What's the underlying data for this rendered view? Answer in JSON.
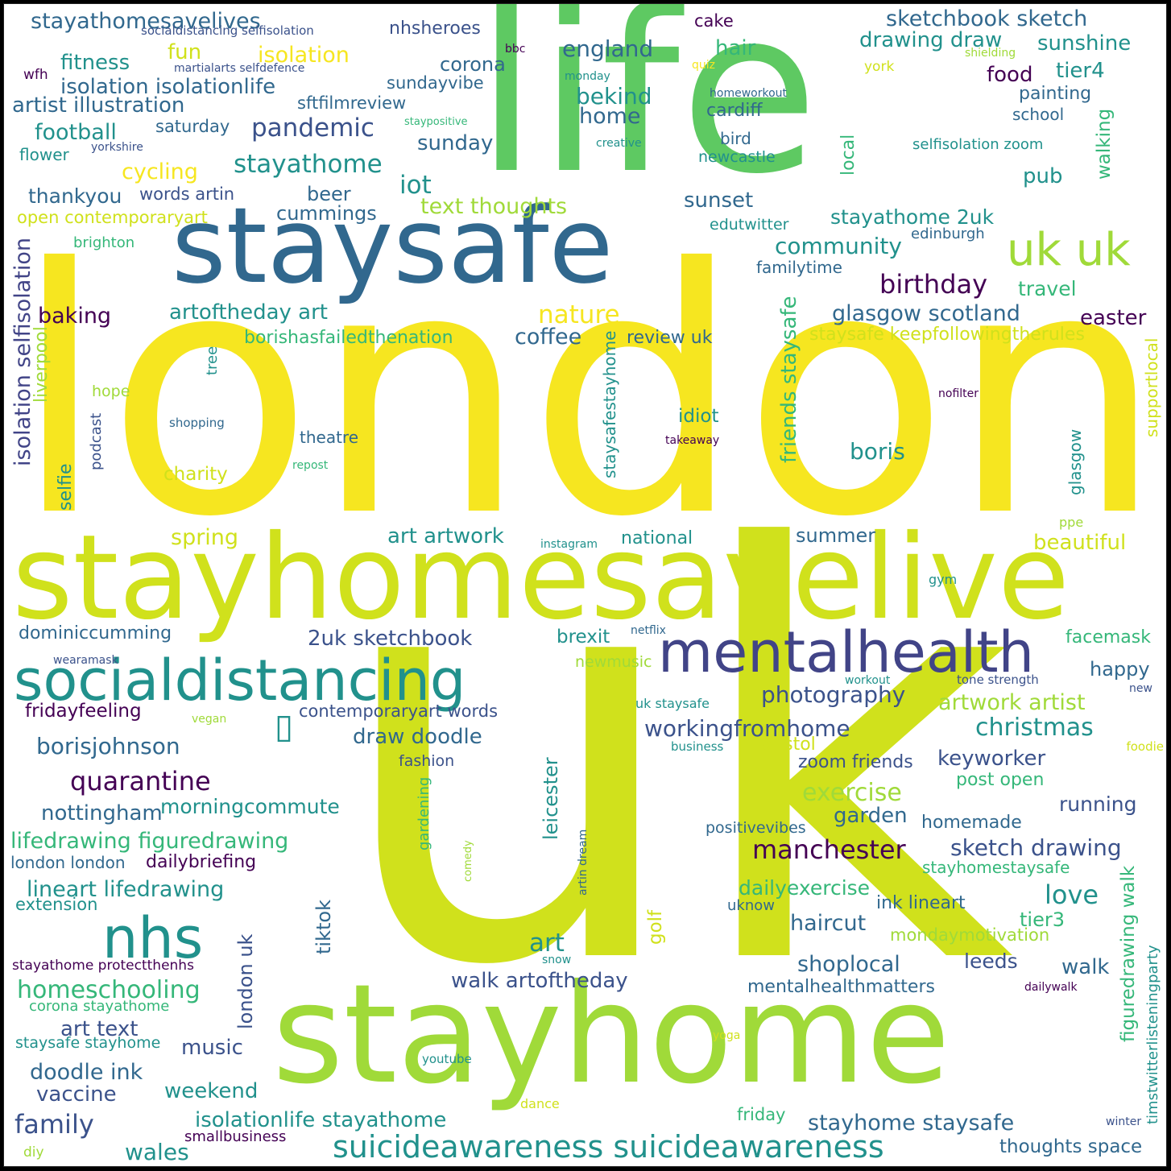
{
  "palette": {
    "purple": "#440154",
    "indigo": "#3b528b",
    "navy": "#414487",
    "blue": "#31688e",
    "teal": "#21918c",
    "green": "#35b779",
    "lightgreen": "#5ec962",
    "lime": "#a0da39",
    "yellowgreen": "#d0e11c",
    "yellow": "#f6e620"
  },
  "words": [
    {
      "name": "london",
      "text": "london",
      "color": "yellow"
    },
    {
      "name": "uk",
      "text": "uk",
      "color": "yellowgreen"
    },
    {
      "name": "life",
      "text": "life",
      "color": "lightgreen"
    },
    {
      "name": "stayhomesavelive",
      "text": "stayhomesavelive",
      "color": "yellowgreen"
    },
    {
      "name": "stayhome",
      "text": "stayhome",
      "color": "lime"
    },
    {
      "name": "staysafe",
      "text": "staysafe",
      "color": "blue"
    },
    {
      "name": "mentalhealth",
      "text": "mentalhealth",
      "color": "navy"
    },
    {
      "name": "socialdistancing",
      "text": "socialdistancing",
      "color": "teal"
    },
    {
      "name": "nhs",
      "text": "nhs",
      "color": "teal"
    },
    {
      "name": "uk-uk",
      "text": "uk uk",
      "color": "lime"
    },
    {
      "name": "suicideawareness",
      "text": "suicideawareness suicideawareness",
      "color": "teal"
    },
    {
      "name": "stayathomesavelives",
      "text": "stayathomesavelives",
      "color": "blue"
    },
    {
      "name": "socialdistancing-selfisolation",
      "text": "socialdistancing selfisolation",
      "color": "indigo"
    },
    {
      "name": "martialarts",
      "text": "martialarts selfdefence",
      "color": "indigo"
    },
    {
      "name": "wfh",
      "text": "wfh",
      "color": "purple"
    },
    {
      "name": "fitness",
      "text": "fitness",
      "color": "teal"
    },
    {
      "name": "isolation-isolationlife",
      "text": "isolation isolationlife",
      "color": "blue"
    },
    {
      "name": "artist-illustration",
      "text": "artist illustration",
      "color": "blue"
    },
    {
      "name": "football",
      "text": "football",
      "color": "teal"
    },
    {
      "name": "flower",
      "text": "flower",
      "color": "teal"
    },
    {
      "name": "yorkshire",
      "text": "yorkshire",
      "color": "indigo"
    },
    {
      "name": "cycling",
      "text": "cycling",
      "color": "yellow"
    },
    {
      "name": "thankyou",
      "text": "thankyou",
      "color": "blue"
    },
    {
      "name": "words-artin",
      "text": "words artin",
      "color": "indigo"
    },
    {
      "name": "open-contemporaryart",
      "text": "open contemporaryart",
      "color": "yellowgreen"
    },
    {
      "name": "brighton",
      "text": "brighton",
      "color": "green"
    },
    {
      "name": "fun",
      "text": "fun",
      "color": "yellowgreen"
    },
    {
      "name": "isolation",
      "text": "isolation",
      "color": "yellow"
    },
    {
      "name": "nhsheroes",
      "text": "nhsheroes",
      "color": "indigo"
    },
    {
      "name": "bbc",
      "text": "bbc",
      "color": "purple"
    },
    {
      "name": "cake",
      "text": "cake",
      "color": "purple"
    },
    {
      "name": "sketchbook-sketch",
      "text": "sketchbook sketch",
      "color": "blue"
    },
    {
      "name": "drawing-draw",
      "text": "drawing draw",
      "color": "teal"
    },
    {
      "name": "sunshine",
      "text": "sunshine",
      "color": "teal"
    },
    {
      "name": "england",
      "text": "england",
      "color": "blue"
    },
    {
      "name": "hair",
      "text": "hair",
      "color": "green"
    },
    {
      "name": "corona",
      "text": "corona",
      "color": "blue"
    },
    {
      "name": "monday",
      "text": "monday",
      "color": "teal"
    },
    {
      "name": "quiz",
      "text": "quiz",
      "color": "yellow"
    },
    {
      "name": "york",
      "text": "york",
      "color": "yellowgreen"
    },
    {
      "name": "shielding",
      "text": "shielding",
      "color": "lime"
    },
    {
      "name": "food",
      "text": "food",
      "color": "purple"
    },
    {
      "name": "tier4",
      "text": "tier4",
      "color": "teal"
    },
    {
      "name": "sundayvibe",
      "text": "sundayvibe",
      "color": "blue"
    },
    {
      "name": "sftfilmreview",
      "text": "sftfilmreview",
      "color": "blue"
    },
    {
      "name": "bekind",
      "text": "bekind",
      "color": "teal"
    },
    {
      "name": "home",
      "text": "home",
      "color": "blue"
    },
    {
      "name": "homeworkout",
      "text": "homeworkout",
      "color": "blue"
    },
    {
      "name": "cardiff",
      "text": "cardiff",
      "color": "blue"
    },
    {
      "name": "painting",
      "text": "painting",
      "color": "blue"
    },
    {
      "name": "school",
      "text": "school",
      "color": "blue"
    },
    {
      "name": "staypositive",
      "text": "staypositive",
      "color": "green"
    },
    {
      "name": "saturday",
      "text": "saturday",
      "color": "blue"
    },
    {
      "name": "pandemic",
      "text": "pandemic",
      "color": "indigo"
    },
    {
      "name": "sunday",
      "text": "sunday",
      "color": "blue"
    },
    {
      "name": "creative",
      "text": "creative",
      "color": "teal"
    },
    {
      "name": "bird",
      "text": "bird",
      "color": "blue"
    },
    {
      "name": "newcastle",
      "text": "newcastle",
      "color": "teal"
    },
    {
      "name": "selfisolation-zoom",
      "text": "selfisolation zoom",
      "color": "teal"
    },
    {
      "name": "walking",
      "text": "walking",
      "color": "green"
    },
    {
      "name": "local",
      "text": "local",
      "color": "green"
    },
    {
      "name": "stayathome",
      "text": "stayathome",
      "color": "teal"
    },
    {
      "name": "iot",
      "text": "iot",
      "color": "teal"
    },
    {
      "name": "beer",
      "text": "beer",
      "color": "blue"
    },
    {
      "name": "text-thoughts",
      "text": "text thoughts",
      "color": "lime"
    },
    {
      "name": "cummings",
      "text": "cummings",
      "color": "blue"
    },
    {
      "name": "sunset",
      "text": "sunset",
      "color": "blue"
    },
    {
      "name": "pub",
      "text": "pub",
      "color": "teal"
    },
    {
      "name": "edutwitter",
      "text": "edutwitter",
      "color": "teal"
    },
    {
      "name": "stayathome-2uk",
      "text": "stayathome 2uk",
      "color": "teal"
    },
    {
      "name": "edinburgh",
      "text": "edinburgh",
      "color": "blue"
    },
    {
      "name": "community",
      "text": "community",
      "color": "teal"
    },
    {
      "name": "familytime",
      "text": "familytime",
      "color": "blue"
    },
    {
      "name": "birthday",
      "text": "birthday",
      "color": "purple"
    },
    {
      "name": "travel",
      "text": "travel",
      "color": "green"
    },
    {
      "name": "nature",
      "text": "nature",
      "color": "yellow"
    },
    {
      "name": "baking",
      "text": "baking",
      "color": "purple"
    },
    {
      "name": "artoftheday-art",
      "text": "artoftheday art",
      "color": "teal"
    },
    {
      "name": "glasgow-scotland",
      "text": "glasgow scotland",
      "color": "blue"
    },
    {
      "name": "easter",
      "text": "easter",
      "color": "purple"
    },
    {
      "name": "staysafe-keepfollowing",
      "text": "staysafe keepfollowingtherules",
      "color": "yellowgreen"
    },
    {
      "name": "borishasfailedthenation",
      "text": "borishasfailedthenation",
      "color": "green"
    },
    {
      "name": "coffee",
      "text": "coffee",
      "color": "blue"
    },
    {
      "name": "review-uk",
      "text": "review uk",
      "color": "blue"
    },
    {
      "name": "isolation-selfisolation",
      "text": "isolation selfisolation",
      "color": "navy"
    },
    {
      "name": "liverpool",
      "text": "liverpool",
      "color": "lime"
    },
    {
      "name": "tree",
      "text": "tree",
      "color": "teal"
    },
    {
      "name": "hope",
      "text": "hope",
      "color": "lime"
    },
    {
      "name": "shopping",
      "text": "shopping",
      "color": "blue"
    },
    {
      "name": "podcast",
      "text": "podcast",
      "color": "indigo"
    },
    {
      "name": "staysafestayhome",
      "text": "staysafestayhome",
      "color": "teal"
    },
    {
      "name": "friends-staysafe",
      "text": "friends staysafe",
      "color": "green"
    },
    {
      "name": "idiot",
      "text": "idiot",
      "color": "teal"
    },
    {
      "name": "takeaway",
      "text": "takeaway",
      "color": "purple"
    },
    {
      "name": "theatre",
      "text": "theatre",
      "color": "blue"
    },
    {
      "name": "repost",
      "text": "repost",
      "color": "green"
    },
    {
      "name": "nofilter",
      "text": "nofilter",
      "color": "purple"
    },
    {
      "name": "supportlocal",
      "text": "supportlocal",
      "color": "yellowgreen"
    },
    {
      "name": "glasgow",
      "text": "glasgow",
      "color": "teal"
    },
    {
      "name": "boris",
      "text": "boris",
      "color": "teal"
    },
    {
      "name": "charity",
      "text": "charity",
      "color": "yellowgreen"
    },
    {
      "name": "selfie",
      "text": "selfie",
      "color": "teal"
    },
    {
      "name": "spring",
      "text": "spring",
      "color": "yellowgreen"
    },
    {
      "name": "art-artwork",
      "text": "art artwork",
      "color": "teal"
    },
    {
      "name": "instagram",
      "text": "instagram",
      "color": "teal"
    },
    {
      "name": "national",
      "text": "national",
      "color": "teal"
    },
    {
      "name": "summer",
      "text": "summer",
      "color": "blue"
    },
    {
      "name": "ppe",
      "text": "ppe",
      "color": "lime"
    },
    {
      "name": "beautiful",
      "text": "beautiful",
      "color": "yellowgreen"
    },
    {
      "name": "gym",
      "text": "gym",
      "color": "teal"
    },
    {
      "name": "dominiccumming",
      "text": "dominiccumming",
      "color": "blue"
    },
    {
      "name": "2uk-sketchbook",
      "text": "2uk sketchbook",
      "color": "indigo"
    },
    {
      "name": "brexit",
      "text": "brexit",
      "color": "teal"
    },
    {
      "name": "netflix",
      "text": "netflix",
      "color": "blue"
    },
    {
      "name": "facemask",
      "text": "facemask",
      "color": "green"
    },
    {
      "name": "newmusic",
      "text": "newmusic",
      "color": "lime"
    },
    {
      "name": "wearamask",
      "text": "wearamask",
      "color": "indigo"
    },
    {
      "name": "workout",
      "text": "workout",
      "color": "teal"
    },
    {
      "name": "tone-strength",
      "text": "tone strength",
      "color": "indigo"
    },
    {
      "name": "happy",
      "text": "happy",
      "color": "blue"
    },
    {
      "name": "new",
      "text": "new",
      "color": "indigo"
    },
    {
      "name": "photography",
      "text": "photography",
      "color": "indigo"
    },
    {
      "name": "uk-staysafe",
      "text": "uk staysafe",
      "color": "teal"
    },
    {
      "name": "artwork-artist",
      "text": "artwork artist",
      "color": "lime"
    },
    {
      "name": "fridayfeeling",
      "text": "fridayfeeling",
      "color": "purple"
    },
    {
      "name": "vegan",
      "text": "vegan",
      "color": "lime"
    },
    {
      "name": "contemporaryart-words",
      "text": "contemporaryart words",
      "color": "indigo"
    },
    {
      "name": "christmas",
      "text": "christmas",
      "color": "teal"
    },
    {
      "name": "borisjohnson",
      "text": "borisjohnson",
      "color": "blue"
    },
    {
      "name": "draw-doodle",
      "text": "draw doodle",
      "color": "blue"
    },
    {
      "name": "workingfromhome",
      "text": "workingfromhome",
      "color": "indigo"
    },
    {
      "name": "bristol",
      "text": "bristol",
      "color": "yellowgreen"
    },
    {
      "name": "business",
      "text": "business",
      "color": "teal"
    },
    {
      "name": "foodie",
      "text": "foodie",
      "color": "yellowgreen"
    },
    {
      "name": "quarantine",
      "text": "quarantine",
      "color": "purple"
    },
    {
      "name": "fashion",
      "text": "fashion",
      "color": "indigo"
    },
    {
      "name": "zoom-friends",
      "text": "zoom friends",
      "color": "indigo"
    },
    {
      "name": "keyworker",
      "text": "keyworker",
      "color": "indigo"
    },
    {
      "name": "exercise",
      "text": "exercise",
      "color": "lime"
    },
    {
      "name": "post-open",
      "text": "post open",
      "color": "green"
    },
    {
      "name": "nottingham",
      "text": "nottingham",
      "color": "blue"
    },
    {
      "name": "morningcommute",
      "text": "morningcommute",
      "color": "teal"
    },
    {
      "name": "gardening",
      "text": "gardening",
      "color": "green"
    },
    {
      "name": "leicester",
      "text": "leicester",
      "color": "teal"
    },
    {
      "name": "garden",
      "text": "garden",
      "color": "blue"
    },
    {
      "name": "running",
      "text": "running",
      "color": "indigo"
    },
    {
      "name": "homemade",
      "text": "homemade",
      "color": "blue"
    },
    {
      "name": "positivevibes",
      "text": "positivevibes",
      "color": "blue"
    },
    {
      "name": "lifedrawing-figuredrawing",
      "text": "lifedrawing figuredrawing",
      "color": "green"
    },
    {
      "name": "manchester",
      "text": "manchester",
      "color": "purple"
    },
    {
      "name": "sketch-drawing",
      "text": "sketch drawing",
      "color": "indigo"
    },
    {
      "name": "artin-dream",
      "text": "artin dream",
      "color": "blue"
    },
    {
      "name": "comedy",
      "text": "comedy",
      "color": "lime"
    },
    {
      "name": "london-london",
      "text": "london london",
      "color": "blue"
    },
    {
      "name": "dailybriefing",
      "text": "dailybriefing",
      "color": "purple"
    },
    {
      "name": "stayhomestaysafe",
      "text": "stayhomestaysafe",
      "color": "green"
    },
    {
      "name": "figuredrawing-walk",
      "text": "figuredrawing walk",
      "color": "green"
    },
    {
      "name": "lineart-lifedrawing",
      "text": "lineart lifedrawing",
      "color": "teal"
    },
    {
      "name": "dailyexercise",
      "text": "dailyexercise",
      "color": "green"
    },
    {
      "name": "love",
      "text": "love",
      "color": "teal"
    },
    {
      "name": "extension",
      "text": "extension",
      "color": "teal"
    },
    {
      "name": "uknow",
      "text": "uknow",
      "color": "blue"
    },
    {
      "name": "ink-lineart",
      "text": "ink lineart",
      "color": "blue"
    },
    {
      "name": "tier3",
      "text": "tier3",
      "color": "green"
    },
    {
      "name": "haircut",
      "text": "haircut",
      "color": "blue"
    },
    {
      "name": "timstwitterlisteningparty",
      "text": "timstwitterlisteningparty",
      "color": "teal"
    },
    {
      "name": "art",
      "text": "art",
      "color": "teal"
    },
    {
      "name": "golf",
      "text": "golf",
      "color": "yellowgreen"
    },
    {
      "name": "mondaymotivation",
      "text": "mondaymotivation",
      "color": "lime"
    },
    {
      "name": "tiktok",
      "text": "tiktok",
      "color": "blue"
    },
    {
      "name": "stayathome-protectthenhs",
      "text": "stayathome protectthenhs",
      "color": "purple"
    },
    {
      "name": "snow",
      "text": "snow",
      "color": "teal"
    },
    {
      "name": "shoplocal",
      "text": "shoplocal",
      "color": "blue"
    },
    {
      "name": "leeds",
      "text": "leeds",
      "color": "indigo"
    },
    {
      "name": "walk",
      "text": "walk",
      "color": "blue"
    },
    {
      "name": "homeschooling",
      "text": "homeschooling",
      "color": "green"
    },
    {
      "name": "walk-artoftheday",
      "text": "walk artoftheday",
      "color": "indigo"
    },
    {
      "name": "london-uk",
      "text": "london uk",
      "color": "indigo"
    },
    {
      "name": "mentalhealthmatters",
      "text": "mentalhealthmatters",
      "color": "blue"
    },
    {
      "name": "dailywalk",
      "text": "dailywalk",
      "color": "purple"
    },
    {
      "name": "corona-stayathome",
      "text": "corona stayathome",
      "color": "green"
    },
    {
      "name": "art-text",
      "text": "art text",
      "color": "indigo"
    },
    {
      "name": "yoga",
      "text": "yoga",
      "color": "yellowgreen"
    },
    {
      "name": "staysafe-stayhome",
      "text": "staysafe stayhome",
      "color": "teal"
    },
    {
      "name": "music",
      "text": "music",
      "color": "indigo"
    },
    {
      "name": "youtube",
      "text": "youtube",
      "color": "teal"
    },
    {
      "name": "doodle-ink",
      "text": "doodle ink",
      "color": "blue"
    },
    {
      "name": "weekend",
      "text": "weekend",
      "color": "teal"
    },
    {
      "name": "vaccine",
      "text": "vaccine",
      "color": "indigo"
    },
    {
      "name": "dance",
      "text": "dance",
      "color": "yellowgreen"
    },
    {
      "name": "family",
      "text": "family",
      "color": "indigo"
    },
    {
      "name": "isolationlife-stayathome",
      "text": "isolationlife stayathome",
      "color": "teal"
    },
    {
      "name": "friday",
      "text": "friday",
      "color": "green"
    },
    {
      "name": "stayhome-staysafe",
      "text": "stayhome staysafe",
      "color": "blue"
    },
    {
      "name": "winter",
      "text": "winter",
      "color": "indigo"
    },
    {
      "name": "smallbusiness",
      "text": "smallbusiness",
      "color": "purple"
    },
    {
      "name": "wales",
      "text": "wales",
      "color": "teal"
    },
    {
      "name": "thoughts-space",
      "text": "thoughts space",
      "color": "blue"
    },
    {
      "name": "diy",
      "text": "diy",
      "color": "lime"
    },
    {
      "name": "missing-glyph",
      "text": "▯",
      "color": "teal"
    }
  ]
}
